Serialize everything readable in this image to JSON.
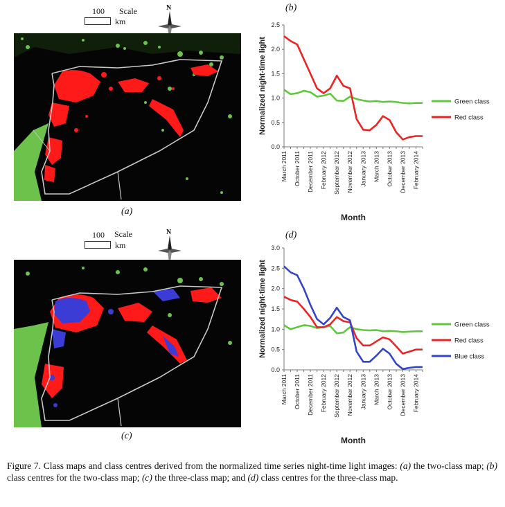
{
  "panels": {
    "a": {
      "label": "(a)",
      "scale_value": "100",
      "scale_word": "Scale",
      "scale_unit": "km",
      "north": "N"
    },
    "b": {
      "label": "(b)"
    },
    "c": {
      "label": "(c)",
      "scale_value": "100",
      "scale_word": "Scale",
      "scale_unit": "km",
      "north": "N"
    },
    "d": {
      "label": "(d)"
    }
  },
  "colors": {
    "green": "#5ec83c",
    "red": "#ee2222",
    "blue": "#3344cc",
    "map_red": "#ff1a1a",
    "map_blue": "#3b3bd6",
    "map_green": "#6cc24a",
    "border": "#c8c8c8"
  },
  "caption": {
    "prefix": "Figure 7.   Class maps and class centres derived from the normalized time series night-time light images: ",
    "parts": [
      {
        "label": "(a)",
        "text": " the two-class map; "
      },
      {
        "label": "(b)",
        "text": " class centres for the two-class map; "
      },
      {
        "label": "(c)",
        "text": " the three-class map; and "
      },
      {
        "label": "(d)",
        "text": " class centres for the three-class map."
      }
    ]
  },
  "chart_data": [
    {
      "type": "line",
      "ylabel": "Normalized night-time light",
      "xlabel": "Month",
      "ylim": [
        0,
        2.5
      ],
      "yticks": [
        "0.0",
        "0.5",
        "1.0",
        "1.5",
        "2.0",
        "2.5"
      ],
      "categories": [
        "March 2011",
        "October 2011",
        "December 2011",
        "February 2012",
        "September 2012",
        "November 2012",
        "January 2013",
        "March 2013",
        "October 2013",
        "December 2013",
        "February 2014"
      ],
      "x": [
        0,
        1,
        2,
        3,
        4,
        5,
        6,
        7,
        8,
        9,
        10,
        11,
        12,
        13,
        14,
        15,
        16,
        17,
        18,
        19,
        20,
        21
      ],
      "legend_position": "right",
      "series": [
        {
          "name": "Green class",
          "color": "#5ec83c",
          "values": [
            1.17,
            1.08,
            1.1,
            1.15,
            1.12,
            1.03,
            1.05,
            1.09,
            0.95,
            0.94,
            1.03,
            0.98,
            0.95,
            0.93,
            0.94,
            0.92,
            0.93,
            0.92,
            0.9,
            0.89,
            0.9,
            0.9
          ]
        },
        {
          "name": "Red class",
          "color": "#ee2222",
          "values": [
            2.27,
            2.17,
            2.1,
            1.8,
            1.5,
            1.2,
            1.1,
            1.2,
            1.46,
            1.25,
            1.2,
            0.57,
            0.35,
            0.34,
            0.45,
            0.63,
            0.55,
            0.3,
            0.15,
            0.2,
            0.22,
            0.22
          ]
        }
      ]
    },
    {
      "type": "line",
      "ylabel": "Normalized night-time light",
      "xlabel": "Month",
      "ylim": [
        0,
        3.0
      ],
      "yticks": [
        "0.0",
        "0.5",
        "1.0",
        "1.5",
        "2.0",
        "2.5",
        "3.0"
      ],
      "categories": [
        "March 2011",
        "October 2011",
        "December 2011",
        "February 2012",
        "September 2012",
        "November 2012",
        "January 2013",
        "March 2013",
        "October 2013",
        "December 2013",
        "February 2014"
      ],
      "x": [
        0,
        1,
        2,
        3,
        4,
        5,
        6,
        7,
        8,
        9,
        10,
        11,
        12,
        13,
        14,
        15,
        16,
        17,
        18,
        19,
        20,
        21
      ],
      "legend_position": "right",
      "series": [
        {
          "name": "Green class",
          "color": "#5ec83c",
          "values": [
            1.1,
            1.0,
            1.05,
            1.1,
            1.08,
            1.03,
            1.05,
            1.08,
            0.9,
            0.92,
            1.05,
            1.0,
            0.98,
            0.97,
            0.98,
            0.95,
            0.96,
            0.95,
            0.93,
            0.94,
            0.95,
            0.95
          ]
        },
        {
          "name": "Red class",
          "color": "#ee2222",
          "values": [
            1.8,
            1.72,
            1.68,
            1.5,
            1.3,
            1.05,
            1.05,
            1.12,
            1.3,
            1.2,
            1.17,
            0.78,
            0.6,
            0.6,
            0.7,
            0.8,
            0.75,
            0.58,
            0.4,
            0.45,
            0.5,
            0.5
          ]
        },
        {
          "name": "Blue class",
          "color": "#3344cc",
          "values": [
            2.55,
            2.4,
            2.33,
            2.0,
            1.6,
            1.25,
            1.12,
            1.28,
            1.53,
            1.3,
            1.22,
            0.45,
            0.2,
            0.2,
            0.35,
            0.52,
            0.4,
            0.15,
            0.02,
            0.05,
            0.07,
            0.07
          ]
        }
      ]
    }
  ]
}
